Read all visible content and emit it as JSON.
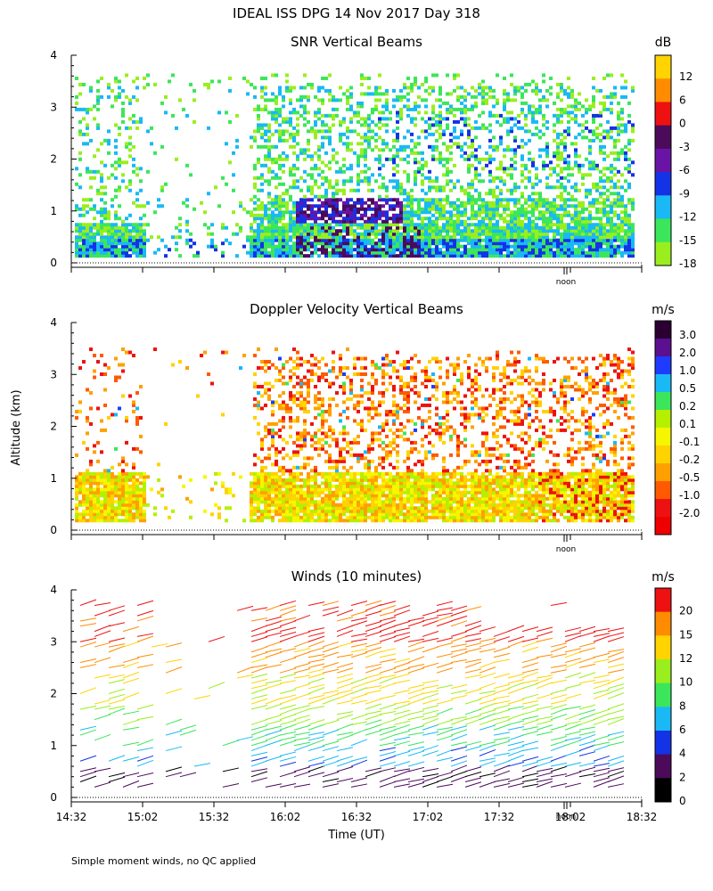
{
  "title": "IDEAL ISS DPG  14 Nov 2017 Day 318",
  "ylabel": "Altitude (km)",
  "xlabel": "Time (UT)",
  "footnote": "Simple moment winds, no QC applied",
  "noon_label": "noon",
  "chart_data": [
    {
      "type": "heatmap",
      "title": "SNR Vertical Beams",
      "ylim": [
        0,
        4
      ],
      "yticks": [
        "0",
        "1",
        "2",
        "3",
        "4"
      ],
      "colorbar_unit": "dB",
      "colorbar_labels": [
        "12",
        "6",
        "0",
        "-3",
        "-6",
        "-9",
        "-12",
        "-15",
        "-18"
      ],
      "colorbar_colors": [
        "#ffd400",
        "#ff8c00",
        "#ee1111",
        "#4b0a5a",
        "#6a14a6",
        "#1432e6",
        "#19b9f5",
        "#3ce65a",
        "#9aee1e"
      ]
    },
    {
      "type": "heatmap",
      "title": "Doppler Velocity Vertical Beams",
      "ylim": [
        0,
        4
      ],
      "yticks": [
        "0",
        "1",
        "2",
        "3",
        "4"
      ],
      "colorbar_unit": "m/s",
      "colorbar_labels": [
        "3.0",
        "2.0",
        "1.0",
        "0.5",
        "0.2",
        "0.1",
        "-0.1",
        "-0.2",
        "-0.5",
        "-1.0",
        "-2.0"
      ],
      "colorbar_colors": [
        "#2a0030",
        "#5a1090",
        "#1e3cff",
        "#19b9f5",
        "#3ce65a",
        "#b4f000",
        "#f6f600",
        "#ffd200",
        "#ffa000",
        "#ff5a00",
        "#ee1111",
        "#ee0000"
      ]
    },
    {
      "type": "scatter",
      "title": "Winds (10 minutes)",
      "ylim": [
        0,
        4
      ],
      "yticks": [
        "0",
        "1",
        "2",
        "3",
        "4"
      ],
      "xticks": [
        "14:32",
        "15:02",
        "15:32",
        "16:02",
        "16:32",
        "17:02",
        "17:32",
        "18:02",
        "18:32"
      ],
      "colorbar_unit": "m/s",
      "colorbar_labels": [
        "20",
        "15",
        "12",
        "10",
        "8",
        "6",
        "4",
        "2",
        "0"
      ],
      "colorbar_colors": [
        "#ee1111",
        "#ff8c00",
        "#ffd400",
        "#9aee1e",
        "#3ce65a",
        "#19b9f5",
        "#1432e6",
        "#4b0a5a",
        "#000000"
      ]
    }
  ]
}
